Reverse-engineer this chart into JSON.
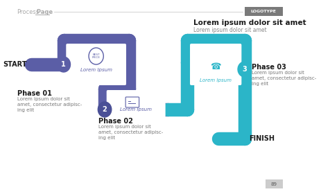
{
  "bg_color": "#ffffff",
  "header_text": "Process",
  "header_bold": " Page",
  "header_line_color": "#cccccc",
  "logotype_bg": "#7a7a7a",
  "logotype_text": "LOGOTYPE",
  "title_main": "Lorem ipsum dolor sit amet",
  "title_sub": "Lorem ipsum dolor sit amet",
  "phase1_label": "Phase 01",
  "phase1_desc": "Lorem ipsum dolor sit\namet, consectetur adipisc-\ning elit",
  "phase2_label": "Phase 02",
  "phase2_desc": "Lorem ipsum dolor sit\namet, consectetur adipisc-\ning elit",
  "phase3_label": "Phase 03",
  "phase3_desc": "Lorem ipsum dolor sit\namet, consectetur adipisc-\ning elit",
  "lorem_ipsum1": "Lorem Ipsum",
  "lorem_ipsum2": "Lorem Ipsum",
  "lorem_ipsum3": "Lorem Ipsum",
  "start_label": "START",
  "finish_label": "FINISH",
  "color_blue": "#5b5ea6",
  "color_teal": "#2bb5c8",
  "page_num": "89"
}
